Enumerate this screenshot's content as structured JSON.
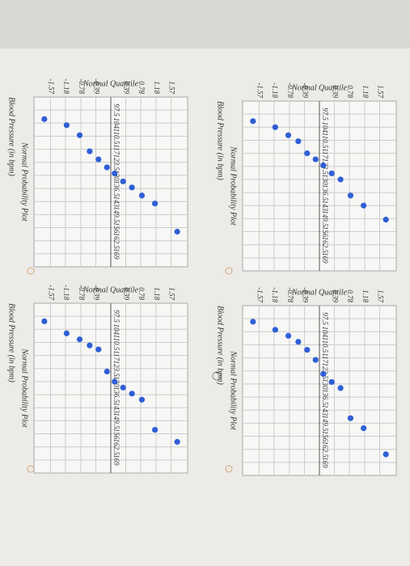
{
  "chart_data": [
    {
      "type": "scatter",
      "title": "Normal Probability Plot",
      "x_label": "Blood Pressure (in bpm)",
      "y_label": "Normal Quantile",
      "x": [
        101,
        104,
        108,
        111,
        117,
        120,
        123,
        127,
        130,
        138,
        143,
        150
      ],
      "y": [
        -1.73,
        -1.15,
        -0.81,
        -0.55,
        -0.32,
        -0.1,
        0.1,
        0.32,
        0.55,
        0.81,
        1.15,
        1.73
      ],
      "color": "#2f5fd6",
      "xlim": [
        91,
        175.5
      ],
      "ylim": [
        -2,
        2
      ],
      "xticks": [
        97.5,
        104,
        110.5,
        117,
        123.5,
        130,
        136.5,
        143,
        149.5,
        156,
        162.5,
        169
      ],
      "yticks": [
        -1.57,
        -1.18,
        -0.78,
        -0.39,
        0.39,
        0.78,
        1.18,
        1.57
      ],
      "grid": true
    },
    {
      "type": "scatter",
      "title": "Normal Probability Plot",
      "x_label": "Blood Pressure (in bpm)",
      "y_label": "Normal Quantile",
      "x": [
        102,
        105,
        110,
        118,
        122,
        126,
        129,
        133,
        136,
        140,
        144,
        158
      ],
      "y": [
        -1.73,
        -1.15,
        -0.81,
        -0.55,
        -0.32,
        -0.1,
        0.1,
        0.32,
        0.55,
        0.81,
        1.15,
        1.73
      ],
      "color": "#2f5fd6",
      "xlim": [
        91,
        175.5
      ],
      "ylim": [
        -2,
        2
      ],
      "xticks": [
        97.5,
        104,
        110.5,
        117,
        123.5,
        130,
        136.5,
        143,
        149.5,
        156,
        162.5,
        169
      ],
      "yticks": [
        -1.57,
        -1.18,
        -0.78,
        -0.39,
        0.39,
        0.78,
        1.18,
        1.57
      ],
      "grid": true
    },
    {
      "type": "scatter",
      "title": "Normal Probability Plot",
      "x_label": "Blood Pressure (in bpm)",
      "y_label": "Normal Quantile",
      "x": [
        99,
        103,
        106,
        109,
        113,
        118,
        125,
        129,
        132,
        147,
        152,
        165
      ],
      "y": [
        -1.73,
        -1.15,
        -0.81,
        -0.55,
        -0.32,
        -0.1,
        0.1,
        0.32,
        0.55,
        0.81,
        1.15,
        1.73
      ],
      "color": "#2f5fd6",
      "xlim": [
        91,
        175.5
      ],
      "ylim": [
        -2,
        2
      ],
      "xticks": [
        97.5,
        104,
        110.5,
        117,
        123.5,
        130,
        136.5,
        143,
        149.5,
        156,
        162.5,
        169
      ],
      "yticks": [
        -1.57,
        -1.18,
        -0.78,
        -0.39,
        0.39,
        0.78,
        1.18,
        1.57
      ],
      "grid": true
    },
    {
      "type": "scatter",
      "title": "Normal Probability Plot",
      "x_label": "Blood Pressure (in bpm)",
      "y_label": "Normal Quantile",
      "x": [
        100,
        106,
        109,
        112,
        114,
        125,
        130,
        133,
        136,
        139,
        154,
        160
      ],
      "y": [
        -1.73,
        -1.15,
        -0.81,
        -0.55,
        -0.32,
        -0.1,
        0.1,
        0.32,
        0.55,
        0.81,
        1.15,
        1.73
      ],
      "color": "#2f5fd6",
      "xlim": [
        91,
        175.5
      ],
      "ylim": [
        -2,
        2
      ],
      "xticks": [
        97.5,
        104,
        110.5,
        117,
        123.5,
        130,
        136.5,
        143,
        149.5,
        156,
        162.5,
        169
      ],
      "yticks": [
        -1.57,
        -1.18,
        -0.78,
        -0.39,
        0.39,
        0.78,
        1.18,
        1.57
      ],
      "grid": true
    }
  ]
}
